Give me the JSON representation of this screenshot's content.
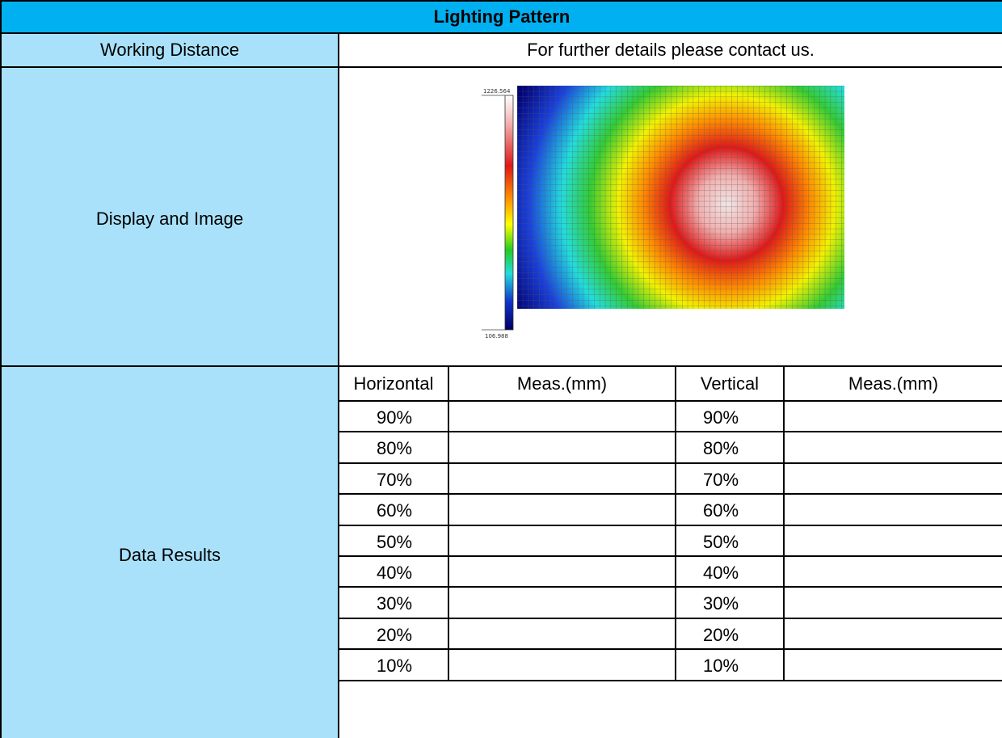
{
  "title": "Lighting Pattern",
  "rows": {
    "working_distance": {
      "label": "Working Distance",
      "value": "For further details please contact us."
    },
    "display": {
      "label": "Display and Image",
      "heatmap": {
        "scale_max": "1226.564",
        "scale_min": "106.988"
      }
    },
    "results": {
      "label": "Data Results",
      "columns": [
        "Horizontal",
        "Meas.(mm)",
        "Vertical",
        "Meas.(mm)"
      ],
      "horizontal": [
        "90%",
        "80%",
        "70%",
        "60%",
        "50%",
        "40%",
        "30%",
        "20%",
        "10%"
      ],
      "vertical": [
        "90%",
        "80%",
        "70%",
        "60%",
        "50%",
        "40%",
        "30%",
        "20%",
        "10%"
      ],
      "horizontal_meas": [
        "",
        "",
        "",
        "",
        "",
        "",
        "",
        "",
        ""
      ],
      "vertical_meas": [
        "",
        "",
        "",
        "",
        "",
        "",
        "",
        "",
        ""
      ]
    }
  },
  "colors": {
    "header_bg": "#00b0f0",
    "label_bg": "#a9e1fb",
    "border": "#000000"
  }
}
